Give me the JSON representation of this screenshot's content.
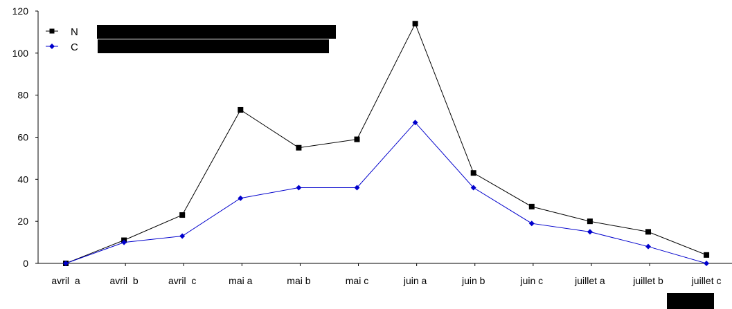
{
  "chart_data": {
    "type": "line",
    "categories": [
      "avril  a",
      "avril  b",
      "avril  c",
      "mai a",
      "mai b",
      "mai c",
      "juin a",
      "juin b",
      "juin c",
      "juillet a",
      "juillet b",
      "juillet c"
    ],
    "series": [
      {
        "name": "N",
        "color": "#000000",
        "marker": "square",
        "values": [
          0,
          11,
          23,
          73,
          55,
          59,
          114,
          43,
          27,
          20,
          15,
          4
        ]
      },
      {
        "name": "C",
        "color": "#0000cc",
        "marker": "diamond",
        "values": [
          0,
          10,
          13,
          31,
          36,
          36,
          67,
          36,
          19,
          15,
          8,
          0
        ]
      }
    ],
    "yticks": [
      "0",
      "20",
      "40",
      "60",
      "80",
      "100",
      "120"
    ],
    "ylim": [
      0,
      120
    ],
    "grid": false,
    "legend_position": "top-left",
    "legend_redactions": 2,
    "corner_redaction": true
  }
}
